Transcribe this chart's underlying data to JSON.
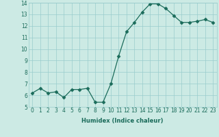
{
  "x": [
    0,
    1,
    2,
    3,
    4,
    5,
    6,
    7,
    8,
    9,
    10,
    11,
    12,
    13,
    14,
    15,
    16,
    17,
    18,
    19,
    20,
    21,
    22,
    23
  ],
  "y": [
    6.2,
    6.6,
    6.2,
    6.3,
    5.8,
    6.5,
    6.5,
    6.6,
    5.4,
    5.4,
    7.0,
    9.4,
    11.5,
    12.3,
    13.2,
    13.9,
    13.9,
    13.5,
    12.9,
    12.3,
    12.3,
    12.4,
    12.55,
    12.3
  ],
  "xlabel": "Humidex (Indice chaleur)",
  "ylim": [
    5,
    14
  ],
  "xlim_min": -0.5,
  "xlim_max": 23.5,
  "yticks": [
    5,
    6,
    7,
    8,
    9,
    10,
    11,
    12,
    13,
    14
  ],
  "xticks": [
    0,
    1,
    2,
    3,
    4,
    5,
    6,
    7,
    8,
    9,
    10,
    11,
    12,
    13,
    14,
    15,
    16,
    17,
    18,
    19,
    20,
    21,
    22,
    23
  ],
  "line_color": "#1a6b5a",
  "marker": "D",
  "marker_size": 2.5,
  "bg_color": "#cceae4",
  "grid_color": "#99cccc",
  "tick_color": "#1a6b5a",
  "label_fontsize": 6.0,
  "tick_fontsize": 5.5
}
